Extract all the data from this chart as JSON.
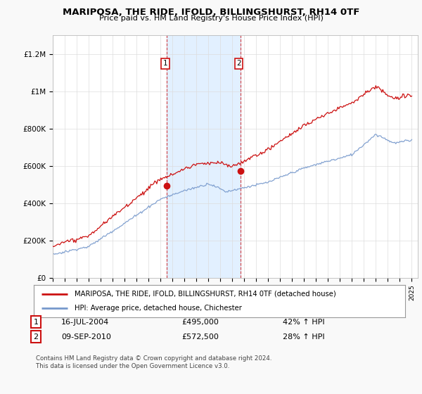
{
  "title": "MARIPOSA, THE RIDE, IFOLD, BILLINGSHURST, RH14 0TF",
  "subtitle": "Price paid vs. HM Land Registry's House Price Index (HPI)",
  "xlim_start": 1995.0,
  "xlim_end": 2025.5,
  "ylim_bottom": 0,
  "ylim_top": 1300000,
  "yticks": [
    0,
    200000,
    400000,
    600000,
    800000,
    1000000,
    1200000
  ],
  "ytick_labels": [
    "£0",
    "£200K",
    "£400K",
    "£600K",
    "£800K",
    "£1M",
    "£1.2M"
  ],
  "xticks": [
    1995,
    1996,
    1997,
    1998,
    1999,
    2000,
    2001,
    2002,
    2003,
    2004,
    2005,
    2006,
    2007,
    2008,
    2009,
    2010,
    2011,
    2012,
    2013,
    2014,
    2015,
    2016,
    2017,
    2018,
    2019,
    2020,
    2021,
    2022,
    2023,
    2024,
    2025
  ],
  "hpi_color": "#7799cc",
  "price_color": "#cc1111",
  "shade_color": "#ddeeff",
  "vline_color": "#cc1111",
  "marker1_x": 2004.54,
  "marker1_y": 495000,
  "marker2_x": 2010.69,
  "marker2_y": 572500,
  "annotation1_date": "16-JUL-2004",
  "annotation1_price": "£495,000",
  "annotation1_hpi": "42% ↑ HPI",
  "annotation2_date": "09-SEP-2010",
  "annotation2_price": "£572,500",
  "annotation2_hpi": "28% ↑ HPI",
  "legend_line1": "MARIPOSA, THE RIDE, IFOLD, BILLINGSHURST, RH14 0TF (detached house)",
  "legend_line2": "HPI: Average price, detached house, Chichester",
  "footer": "Contains HM Land Registry data © Crown copyright and database right 2024.\nThis data is licensed under the Open Government Licence v3.0.",
  "background_color": "#f9f9f9",
  "plot_bg_color": "#ffffff"
}
